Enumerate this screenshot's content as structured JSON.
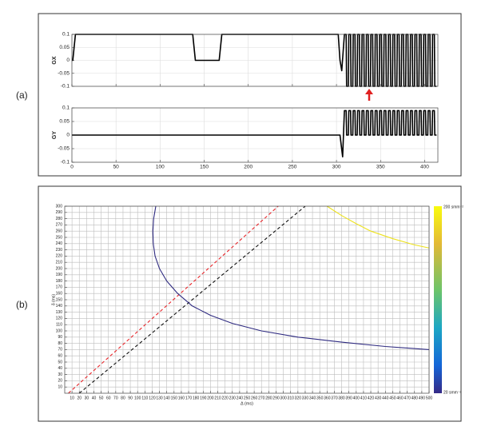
{
  "panel_labels": [
    "(a)",
    "(b)"
  ],
  "chart_data": [
    {
      "type": "line",
      "ylabel": "GX",
      "xlim": [
        0,
        415
      ],
      "ylim": [
        -0.1,
        0.1
      ],
      "xticks": [
        0,
        50,
        100,
        150,
        200,
        250,
        300,
        350,
        400
      ],
      "yticks": [
        -0.1,
        -0.05,
        0,
        0.05,
        0.1
      ],
      "xtick_labels": false,
      "grid": true,
      "series": [
        {
          "color": "#000000",
          "x": [
            0,
            1,
            4,
            137,
            140,
            167,
            170,
            302,
            304,
            306,
            309,
            311,
            311.5,
            313.5,
            314,
            316,
            316.5,
            318.5,
            319,
            321,
            321.5,
            323.5,
            324,
            326,
            326.5,
            328.5,
            329,
            331,
            331.5,
            333.5,
            334,
            336,
            336.5,
            338.5,
            339,
            341,
            341.5,
            343.5,
            344,
            346,
            346.5,
            348.5,
            349,
            351,
            351.5,
            353.5,
            354,
            356,
            356.5,
            358.5,
            359,
            361,
            361.5,
            363.5,
            364,
            366,
            366.5,
            368.5,
            369,
            371,
            371.5,
            373.5,
            374,
            376,
            376.5,
            378.5,
            379,
            381,
            381.5,
            383.5,
            384,
            386,
            386.5,
            388.5,
            389,
            391,
            391.5,
            393.5,
            394,
            396,
            396.5,
            398.5,
            399,
            401,
            401.5,
            403.5,
            404,
            406,
            406.5,
            408.5,
            409,
            411,
            411.5,
            413.5
          ],
          "values": [
            0,
            0,
            0.1,
            0.1,
            0,
            0,
            0.1,
            0.1,
            0,
            -0.04,
            0.1,
            0.1,
            -0.1,
            -0.1,
            0.1,
            0.1,
            -0.1,
            -0.1,
            0.1,
            0.1,
            -0.1,
            -0.1,
            0.1,
            0.1,
            -0.1,
            -0.1,
            0.1,
            0.1,
            -0.1,
            -0.1,
            0.1,
            0.1,
            -0.1,
            -0.1,
            0.1,
            0.1,
            -0.1,
            -0.1,
            0.1,
            0.1,
            -0.1,
            -0.1,
            0.1,
            0.1,
            -0.1,
            -0.1,
            0.1,
            0.1,
            -0.1,
            -0.1,
            0.1,
            0.1,
            -0.1,
            -0.1,
            0.1,
            0.1,
            -0.1,
            -0.1,
            0.1,
            0.1,
            -0.1,
            -0.1,
            0.1,
            0.1,
            -0.1,
            -0.1,
            0.1,
            0.1,
            -0.1,
            -0.1,
            0.1,
            0.1,
            -0.1,
            -0.1,
            0.1,
            0.1,
            -0.1,
            -0.1,
            0.1,
            0.1,
            -0.1,
            -0.1,
            0.1,
            0.1,
            -0.1,
            -0.1,
            0.1,
            0.1,
            -0.1,
            -0.1,
            0.1,
            0.1,
            -0.1,
            -0.1
          ]
        }
      ]
    },
    {
      "type": "line",
      "ylabel": "GY",
      "xlim": [
        0,
        415
      ],
      "ylim": [
        -0.1,
        0.1
      ],
      "xticks": [
        0,
        50,
        100,
        150,
        200,
        250,
        300,
        350,
        400
      ],
      "yticks": [
        -0.1,
        -0.05,
        0,
        0.05,
        0.1
      ],
      "grid": true,
      "series": [
        {
          "color": "#000000",
          "x": [
            0,
            304,
            307,
            309,
            311,
            311.5,
            313.5,
            314,
            316,
            316.5,
            318.5,
            319,
            321,
            321.5,
            323.5,
            324,
            326,
            326.5,
            328.5,
            329,
            331,
            331.5,
            333.5,
            334,
            336,
            336.5,
            338.5,
            339,
            341,
            341.5,
            343.5,
            344,
            346,
            346.5,
            348.5,
            349,
            351,
            351.5,
            353.5,
            354,
            356,
            356.5,
            358.5,
            359,
            361,
            361.5,
            363.5,
            364,
            366,
            366.5,
            368.5,
            369,
            371,
            371.5,
            373.5,
            374,
            376,
            376.5,
            378.5,
            379,
            381,
            381.5,
            383.5,
            384,
            386,
            386.5,
            388.5,
            389,
            391,
            391.5,
            393.5,
            394,
            396,
            396.5,
            398.5,
            399,
            401,
            401.5,
            403.5,
            404,
            406,
            406.5,
            408.5,
            409,
            411,
            411.5,
            413.5
          ],
          "values": [
            0,
            0,
            -0.08,
            0.09,
            0.09,
            0,
            0,
            0.09,
            0.09,
            0,
            0,
            0.09,
            0.09,
            0,
            0,
            0.09,
            0.09,
            0,
            0,
            0.09,
            0.09,
            0,
            0,
            0.09,
            0.09,
            0,
            0,
            0.09,
            0.09,
            0,
            0,
            0.09,
            0.09,
            0,
            0,
            0.09,
            0.09,
            0,
            0,
            0.09,
            0.09,
            0,
            0,
            0.09,
            0.09,
            0,
            0,
            0.09,
            0.09,
            0,
            0,
            0.09,
            0.09,
            0,
            0,
            0.09,
            0.09,
            0,
            0,
            0.09,
            0.09,
            0,
            0,
            0.09,
            0.09,
            0,
            0,
            0.09,
            0.09,
            0,
            0,
            0.09,
            0.09,
            0,
            0,
            0.09,
            0.09,
            0,
            0,
            0.09,
            0.09,
            0,
            0,
            0.09,
            0.09,
            0,
            0
          ]
        }
      ]
    },
    {
      "type": "line",
      "xlabel": "Δ (ms)",
      "ylabel": "δ (ms)",
      "xlim": [
        0,
        500
      ],
      "ylim": [
        0,
        300
      ],
      "xticks": [
        10,
        20,
        30,
        40,
        50,
        60,
        70,
        80,
        90,
        100,
        110,
        120,
        130,
        140,
        150,
        160,
        170,
        180,
        190,
        200,
        210,
        220,
        230,
        240,
        250,
        260,
        270,
        280,
        290,
        300,
        310,
        320,
        330,
        340,
        350,
        360,
        370,
        380,
        390,
        400,
        410,
        420,
        430,
        440,
        450,
        460,
        470,
        480,
        490,
        500
      ],
      "yticks": [
        10,
        20,
        30,
        40,
        50,
        60,
        70,
        80,
        90,
        100,
        110,
        120,
        130,
        140,
        150,
        160,
        170,
        180,
        190,
        200,
        210,
        220,
        230,
        240,
        250,
        260,
        270,
        280,
        290,
        300
      ],
      "grid": true,
      "colorbar_labels": [
        "200 smm⁻²",
        "20 smm⁻²"
      ],
      "series": [
        {
          "color": "#e8262a",
          "dash": true,
          "x": [
            5,
            293
          ],
          "values": [
            0,
            300
          ]
        },
        {
          "color": "#111111",
          "dash": true,
          "x": [
            20,
            330
          ],
          "values": [
            0,
            300
          ]
        },
        {
          "color": "#2e2a80",
          "x": [
            125,
            122,
            121,
            121.5,
            124,
            130,
            140,
            155,
            175,
            200,
            230,
            270,
            320,
            380,
            440,
            500
          ],
          "values": [
            300,
            280,
            260,
            240,
            220,
            200,
            180,
            160,
            140,
            125,
            112,
            100,
            90,
            82,
            75,
            70
          ]
        },
        {
          "color": "#ede21c",
          "x": [
            360,
            380,
            400,
            420,
            450,
            480,
            500
          ],
          "values": [
            300,
            285,
            272,
            260,
            248,
            238,
            233
          ]
        }
      ]
    }
  ]
}
